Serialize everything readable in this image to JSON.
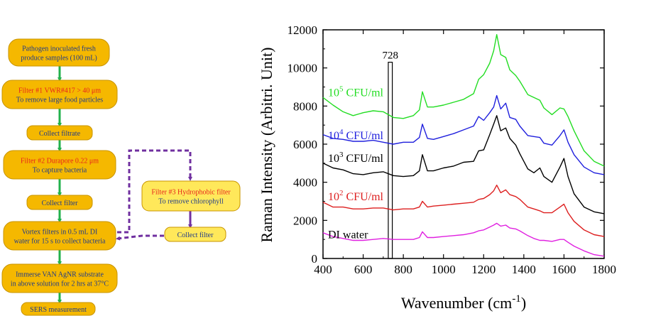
{
  "flowchart": {
    "steps": [
      {
        "id": "s1",
        "lines": [
          "Pathogen inoculated fresh",
          "produce samples (100 mL)"
        ],
        "red_first": false
      },
      {
        "id": "s2",
        "lines": [
          "Filter #1 VWR#417 > 40 μm",
          "To remove large food particles"
        ],
        "red_first": true
      },
      {
        "id": "s3",
        "lines": [
          "Collect filtrate"
        ],
        "red_first": false
      },
      {
        "id": "s4",
        "lines": [
          "Filter #2 Durapore 0.22 μm",
          "To capture bacteria"
        ],
        "red_first": true
      },
      {
        "id": "s5",
        "lines": [
          "Collect filter"
        ],
        "red_first": false
      },
      {
        "id": "s6",
        "lines": [
          "Vortex filters in 0.5 mL DI",
          "water for 15 s to collect bacteria"
        ],
        "red_first": false
      },
      {
        "id": "s7",
        "lines": [
          "Immerse VAN AgNR substrate",
          "in above solution for 2 hrs at 37°C"
        ],
        "red_first": false
      },
      {
        "id": "s8",
        "lines": [
          "SERS measurement"
        ],
        "red_first": false
      },
      {
        "id": "s9",
        "lines": [
          "Filter #3 Hydrophobic filter",
          "To remove chlorophyll"
        ],
        "red_first": true
      },
      {
        "id": "s10",
        "lines": [
          "Collect filter"
        ],
        "red_first": false
      }
    ],
    "colors": {
      "box": "#f5b800",
      "box_light": "#ffe85a",
      "text": "#1f3a8a",
      "red": "#e8231c",
      "arrow": "#22b14c",
      "dashed": "#7030a0"
    }
  },
  "chart_data": {
    "type": "line",
    "xlabel": "Wavenumber (cm-1)",
    "xlabel_base": "Wavenumber (cm",
    "xlabel_sup": "-1",
    "xlabel_end": ")",
    "ylabel": "Raman Intensity (Arbitri. Unit)",
    "xlim": [
      400,
      1800
    ],
    "ylim": [
      0,
      12000
    ],
    "xticks": [
      "400",
      "600",
      "800",
      "1000",
      "1200",
      "1400",
      "1600",
      "1800"
    ],
    "yticks": [
      "0",
      "2000",
      "4000",
      "6000",
      "8000",
      "10000",
      "12000"
    ],
    "marker_label": "728",
    "marker_range": [
      725,
      745
    ],
    "series": [
      {
        "name": "10^5 CFU/ml",
        "base": "10",
        "exp": "5",
        "unit": " CFU/ml",
        "color": "#22dd22",
        "x": [
          400,
          450,
          500,
          550,
          600,
          650,
          700,
          750,
          800,
          850,
          880,
          895,
          920,
          950,
          1000,
          1050,
          1100,
          1150,
          1175,
          1200,
          1230,
          1250,
          1265,
          1285,
          1310,
          1330,
          1360,
          1380,
          1420,
          1450,
          1480,
          1500,
          1540,
          1580,
          1600,
          1620,
          1650,
          1700,
          1750,
          1800
        ],
        "y": [
          8450,
          8050,
          7700,
          7500,
          7650,
          7750,
          7700,
          7400,
          7350,
          7500,
          7800,
          8750,
          7950,
          7950,
          8050,
          8200,
          8350,
          8650,
          9400,
          9650,
          10250,
          10900,
          11750,
          10700,
          10550,
          9900,
          9600,
          9300,
          8600,
          8450,
          8300,
          7900,
          7550,
          7900,
          7850,
          7450,
          6700,
          5650,
          5100,
          4850
        ]
      },
      {
        "name": "10^4 CFU/ml",
        "base": "10",
        "exp": "4",
        "unit": " CFU/ml",
        "color": "#1f1fdd",
        "x": [
          400,
          450,
          500,
          550,
          600,
          650,
          700,
          750,
          800,
          850,
          880,
          895,
          920,
          950,
          1000,
          1050,
          1100,
          1150,
          1175,
          1200,
          1230,
          1250,
          1265,
          1285,
          1310,
          1330,
          1360,
          1380,
          1420,
          1450,
          1480,
          1500,
          1540,
          1580,
          1600,
          1620,
          1650,
          1700,
          1750,
          1800
        ],
        "y": [
          6500,
          6300,
          6250,
          6150,
          6150,
          6200,
          6100,
          6000,
          6100,
          6100,
          6350,
          7050,
          6300,
          6250,
          6400,
          6550,
          6750,
          6950,
          7450,
          7250,
          7650,
          7950,
          8550,
          7850,
          8150,
          7400,
          7300,
          6950,
          6450,
          6400,
          6350,
          6050,
          5950,
          6450,
          6750,
          6100,
          5450,
          4800,
          4500,
          4400
        ]
      },
      {
        "name": "10^3 CFU/ml",
        "base": "10",
        "exp": "3",
        "unit": " CFU/ml",
        "color": "#000000",
        "x": [
          400,
          450,
          500,
          550,
          600,
          650,
          700,
          750,
          800,
          850,
          880,
          895,
          920,
          950,
          1000,
          1050,
          1100,
          1150,
          1175,
          1200,
          1230,
          1250,
          1265,
          1285,
          1310,
          1330,
          1360,
          1380,
          1420,
          1450,
          1480,
          1500,
          1540,
          1580,
          1600,
          1620,
          1650,
          1700,
          1750,
          1800
        ],
        "y": [
          5000,
          4750,
          4650,
          4450,
          4400,
          4500,
          4550,
          4350,
          4300,
          4350,
          4600,
          5450,
          4600,
          4600,
          4750,
          4850,
          5050,
          5100,
          5650,
          5700,
          6500,
          7050,
          7500,
          6700,
          6850,
          6300,
          5950,
          5500,
          4700,
          4500,
          4750,
          4300,
          4000,
          4800,
          5250,
          4300,
          3400,
          2700,
          2450,
          2350
        ]
      },
      {
        "name": "10^2 CFU/ml",
        "base": "10",
        "exp": "2",
        "unit": " CFU/ml",
        "color": "#dd1f1f",
        "x": [
          400,
          450,
          500,
          550,
          600,
          650,
          700,
          750,
          800,
          850,
          880,
          895,
          920,
          950,
          1000,
          1050,
          1100,
          1150,
          1175,
          1200,
          1230,
          1250,
          1265,
          1285,
          1310,
          1330,
          1360,
          1380,
          1420,
          1450,
          1480,
          1500,
          1540,
          1580,
          1600,
          1620,
          1650,
          1700,
          1750,
          1800
        ],
        "y": [
          2950,
          2700,
          2700,
          2600,
          2600,
          2650,
          2650,
          2550,
          2600,
          2600,
          2700,
          3000,
          2700,
          2750,
          2800,
          2850,
          2900,
          2950,
          3100,
          3150,
          3350,
          3550,
          3850,
          3450,
          3600,
          3350,
          3250,
          3100,
          2700,
          2600,
          2500,
          2400,
          2400,
          2700,
          2850,
          2400,
          1950,
          1500,
          1250,
          1150
        ]
      },
      {
        "name": "DI water",
        "base": "DI water",
        "exp": "",
        "unit": "",
        "color": "#e020e0",
        "x": [
          400,
          450,
          500,
          550,
          600,
          650,
          700,
          750,
          800,
          850,
          880,
          895,
          920,
          950,
          1000,
          1050,
          1100,
          1150,
          1175,
          1200,
          1230,
          1250,
          1265,
          1285,
          1310,
          1330,
          1360,
          1380,
          1420,
          1450,
          1480,
          1500,
          1540,
          1580,
          1600,
          1620,
          1650,
          1700,
          1750,
          1800
        ],
        "y": [
          1350,
          1150,
          1050,
          950,
          950,
          1000,
          1050,
          1000,
          1000,
          1000,
          1100,
          1400,
          1100,
          1100,
          1150,
          1200,
          1250,
          1350,
          1450,
          1500,
          1650,
          1750,
          1850,
          1700,
          1750,
          1600,
          1550,
          1450,
          1200,
          1050,
          950,
          950,
          900,
          1000,
          1000,
          850,
          650,
          400,
          200,
          120
        ]
      }
    ],
    "grid": false
  }
}
